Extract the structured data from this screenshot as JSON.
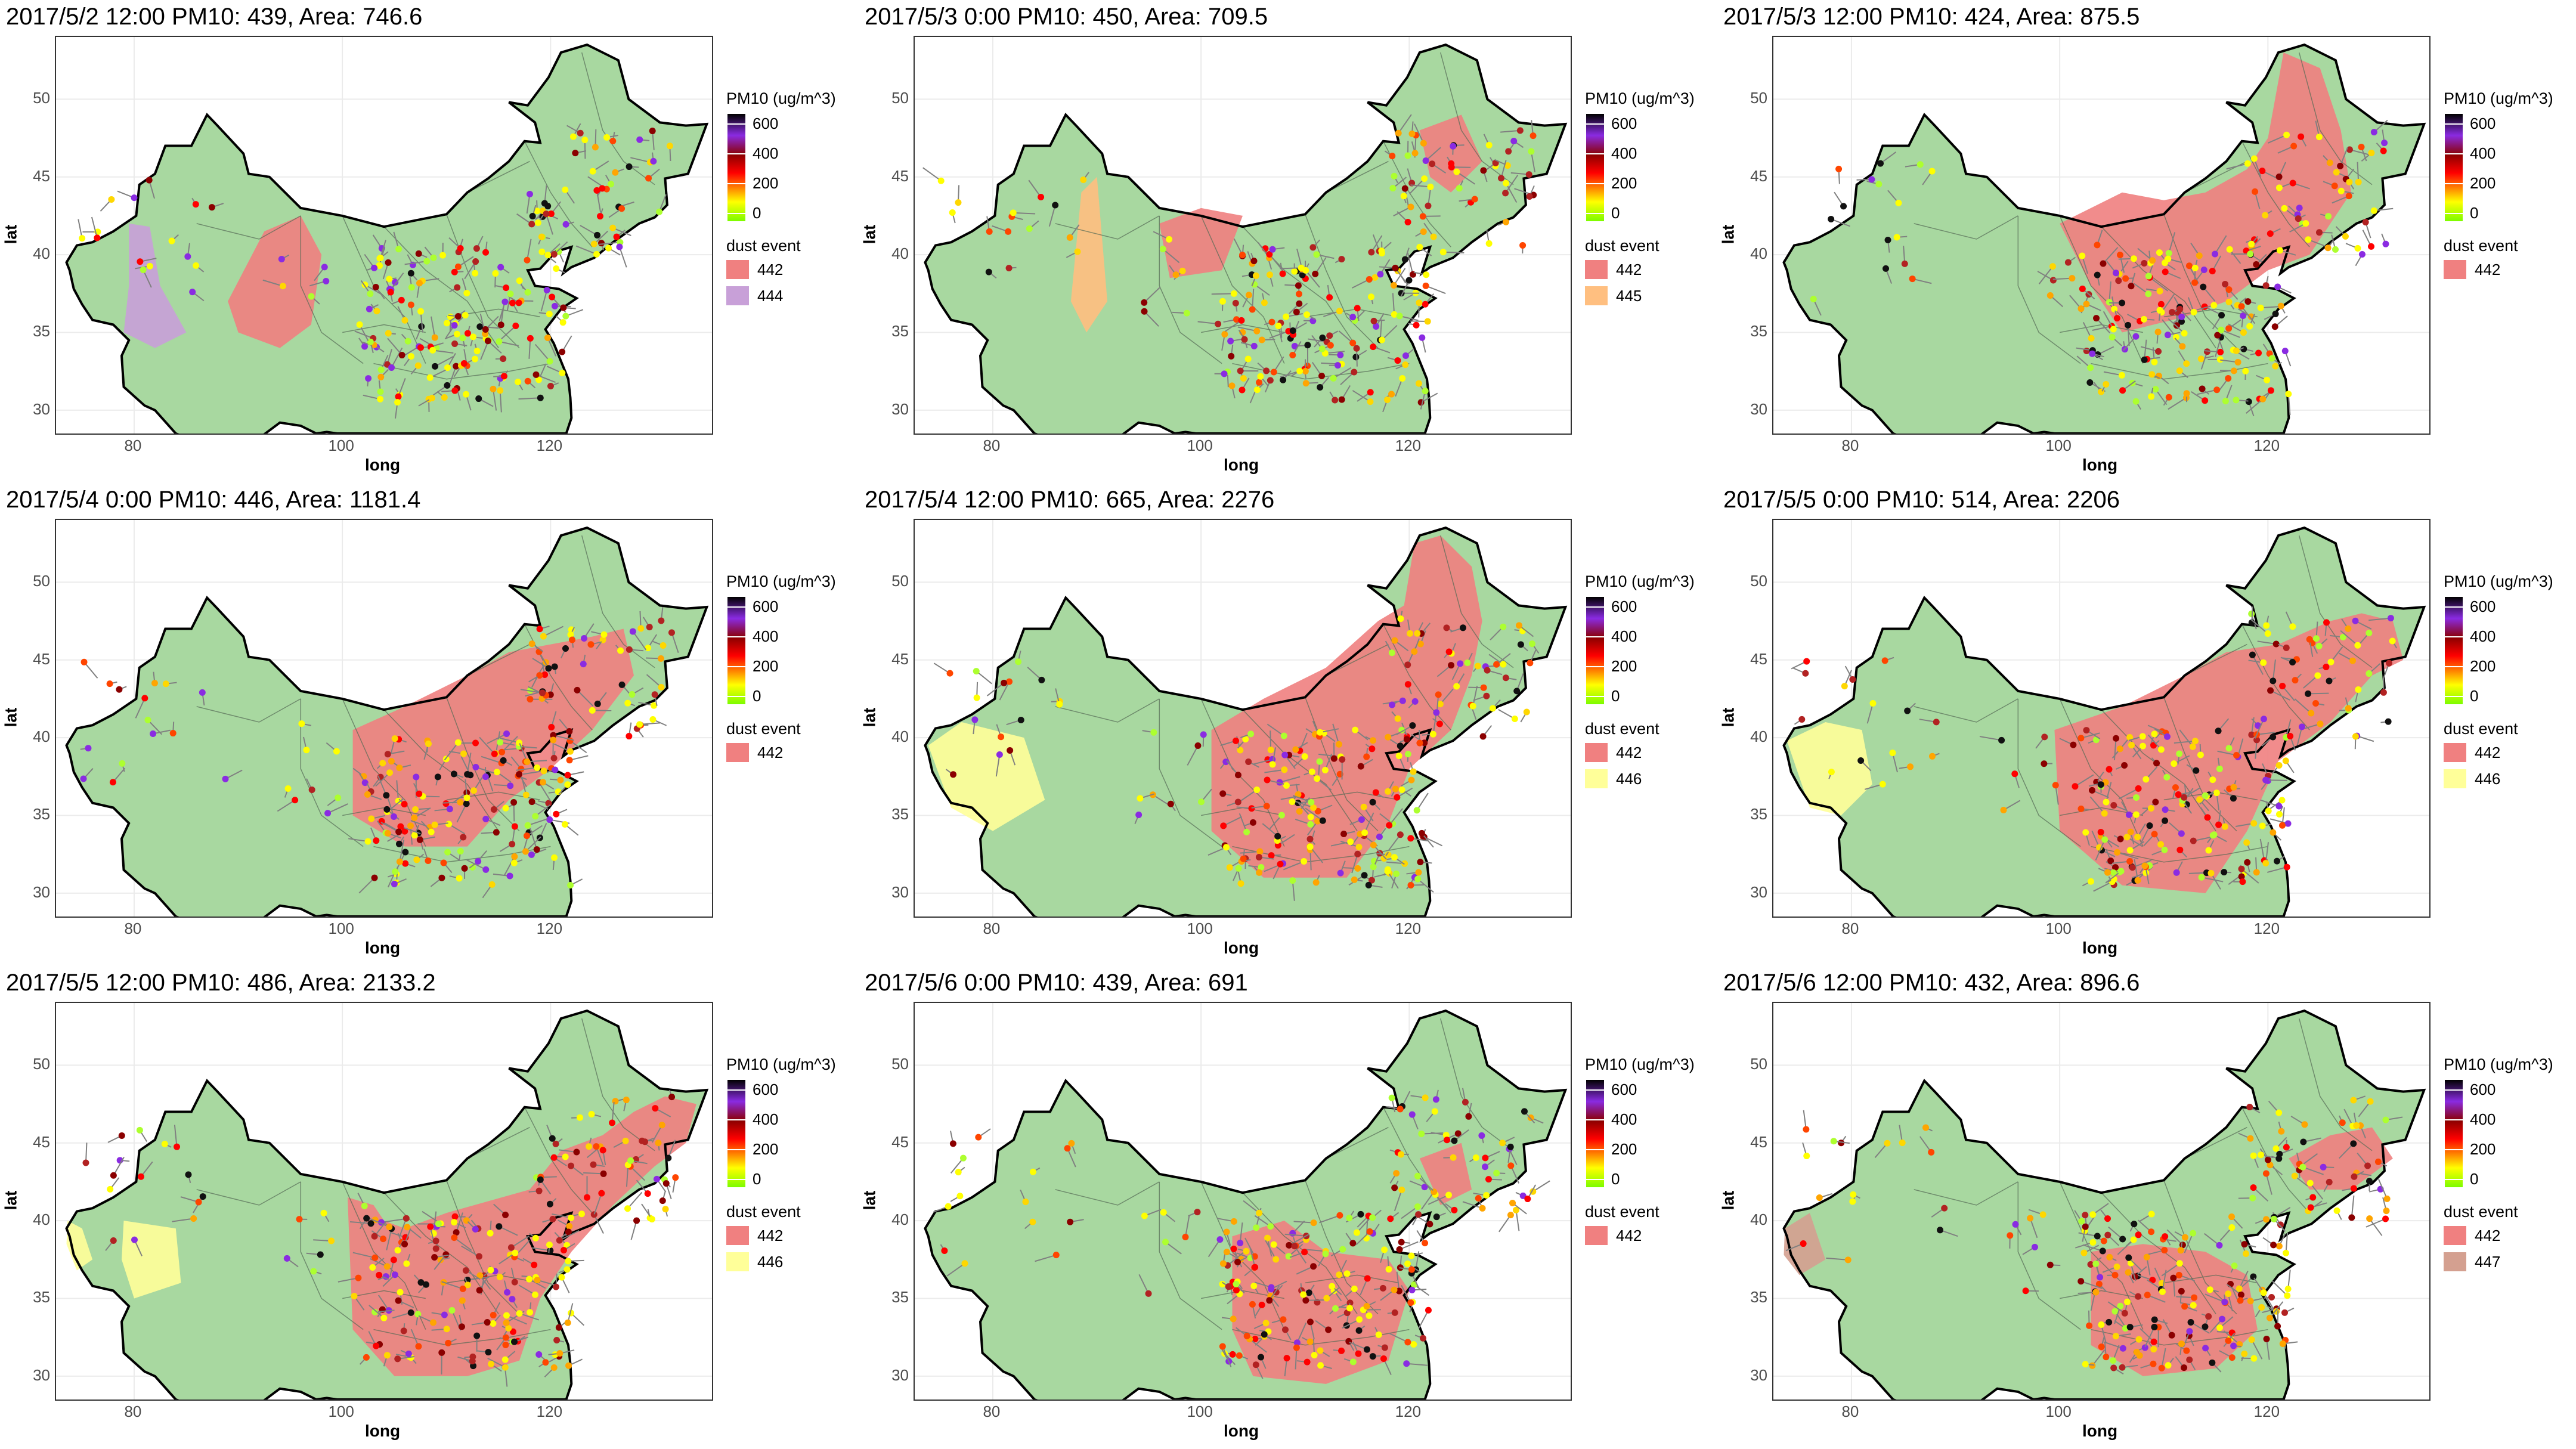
{
  "axes": {
    "xlabel": "long",
    "ylabel": "lat",
    "x_ticks": [
      80,
      100,
      120
    ],
    "y_ticks": [
      30,
      35,
      40,
      45,
      50
    ],
    "xlim": [
      72.5,
      135.5
    ],
    "ylim": [
      28.5,
      54
    ]
  },
  "legend": {
    "pm10_title": "PM10 (ug/m^3)",
    "pm10_ticks": [
      "600",
      "400",
      "200",
      "0"
    ],
    "dust_title": "dust event"
  },
  "colors": {
    "land": "#a8d8a0",
    "land_border": "#000000",
    "dust_442": "#f08080",
    "dust_444": "#c8a0d8",
    "dust_445": "#ffbf80",
    "dust_446": "#ffff99",
    "dust_447": "#d4a090",
    "arrow": "#808080"
  },
  "chart_data": [
    {
      "type": "map",
      "title": "2017/5/2 12:00  PM10: 439, Area: 746.6",
      "dust_events": [
        {
          "id": "442",
          "color": "#f08080"
        },
        {
          "id": "444",
          "color": "#c8a0d8"
        }
      ]
    },
    {
      "type": "map",
      "title": "2017/5/3 0:00  PM10: 450, Area: 709.5",
      "dust_events": [
        {
          "id": "442",
          "color": "#f08080"
        },
        {
          "id": "445",
          "color": "#ffbf80"
        }
      ]
    },
    {
      "type": "map",
      "title": "2017/5/3 12:00  PM10: 424, Area: 875.5",
      "dust_events": [
        {
          "id": "442",
          "color": "#f08080"
        }
      ]
    },
    {
      "type": "map",
      "title": "2017/5/4 0:00  PM10: 446, Area: 1181.4",
      "dust_events": [
        {
          "id": "442",
          "color": "#f08080"
        }
      ]
    },
    {
      "type": "map",
      "title": "2017/5/4 12:00  PM10: 665, Area: 2276",
      "dust_events": [
        {
          "id": "442",
          "color": "#f08080"
        },
        {
          "id": "446",
          "color": "#ffff99"
        }
      ]
    },
    {
      "type": "map",
      "title": "2017/5/5 0:00  PM10: 514, Area: 2206",
      "dust_events": [
        {
          "id": "442",
          "color": "#f08080"
        },
        {
          "id": "446",
          "color": "#ffff99"
        }
      ]
    },
    {
      "type": "map",
      "title": "2017/5/5 12:00  PM10: 486, Area: 2133.2",
      "dust_events": [
        {
          "id": "442",
          "color": "#f08080"
        },
        {
          "id": "446",
          "color": "#ffff99"
        }
      ]
    },
    {
      "type": "map",
      "title": "2017/5/6 0:00  PM10: 439, Area: 691",
      "dust_events": [
        {
          "id": "442",
          "color": "#f08080"
        }
      ]
    },
    {
      "type": "map",
      "title": "2017/5/6 12:00  PM10: 432, Area: 896.6",
      "dust_events": [
        {
          "id": "442",
          "color": "#f08080"
        },
        {
          "id": "447",
          "color": "#d4a090"
        }
      ]
    }
  ]
}
